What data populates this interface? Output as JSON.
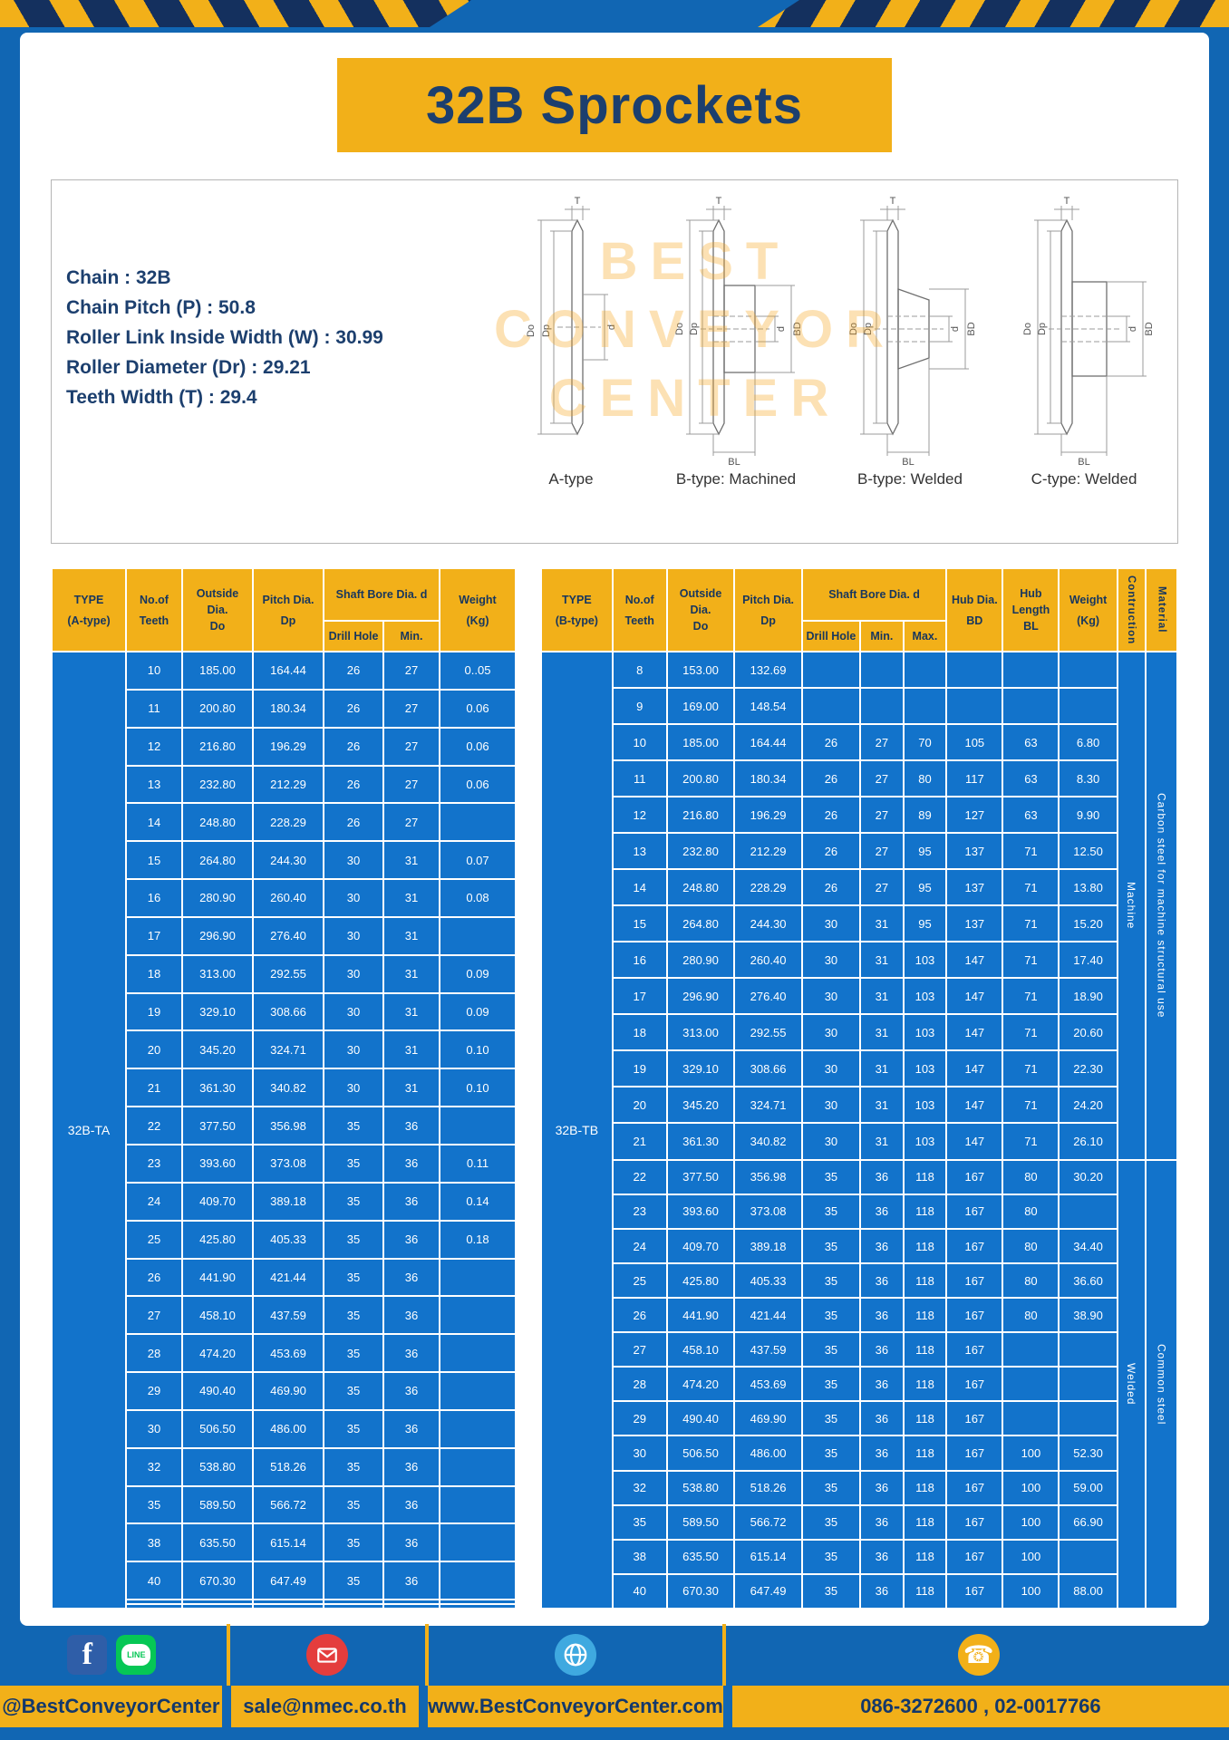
{
  "title": "32B Sprockets",
  "specs": [
    "Chain : 32B",
    "Chain Pitch (P) : 50.8",
    "Roller Link Inside Width (W) : 30.99",
    "Roller Diameter (Dr) : 29.21",
    "Teeth Width (T) : 29.4"
  ],
  "diagram": {
    "watermark": [
      "BEST",
      "CONVEYOR",
      "CENTER"
    ],
    "types": [
      "A-type",
      "B-type: Machined",
      "B-type: Welded",
      "C-type: Welded"
    ],
    "dims": {
      "t": "T",
      "do": "Do",
      "dp": "Dp",
      "d": "d",
      "bd": "BD",
      "bl": "BL"
    }
  },
  "table_a": {
    "headers": {
      "type": [
        "TYPE",
        "(A-type)"
      ],
      "teeth": [
        "No.of",
        "Teeth"
      ],
      "outside": [
        "Outside",
        "Dia.",
        "Do"
      ],
      "pitch": [
        "Pitch Dia.",
        "Dp"
      ],
      "bore_group": "Shaft Bore Dia. d",
      "drill": "Drill Hole",
      "min": "Min.",
      "weight": [
        "Weight",
        "(Kg)"
      ]
    },
    "type_value": "32B-TA",
    "rows": [
      [
        "10",
        "185.00",
        "164.44",
        "26",
        "27",
        "0..05"
      ],
      [
        "11",
        "200.80",
        "180.34",
        "26",
        "27",
        "0.06"
      ],
      [
        "12",
        "216.80",
        "196.29",
        "26",
        "27",
        "0.06"
      ],
      [
        "13",
        "232.80",
        "212.29",
        "26",
        "27",
        "0.06"
      ],
      [
        "14",
        "248.80",
        "228.29",
        "26",
        "27",
        ""
      ],
      [
        "15",
        "264.80",
        "244.30",
        "30",
        "31",
        "0.07"
      ],
      [
        "16",
        "280.90",
        "260.40",
        "30",
        "31",
        "0.08"
      ],
      [
        "17",
        "296.90",
        "276.40",
        "30",
        "31",
        ""
      ],
      [
        "18",
        "313.00",
        "292.55",
        "30",
        "31",
        "0.09"
      ],
      [
        "19",
        "329.10",
        "308.66",
        "30",
        "31",
        "0.09"
      ],
      [
        "20",
        "345.20",
        "324.71",
        "30",
        "31",
        "0.10"
      ],
      [
        "21",
        "361.30",
        "340.82",
        "30",
        "31",
        "0.10"
      ],
      [
        "22",
        "377.50",
        "356.98",
        "35",
        "36",
        ""
      ],
      [
        "23",
        "393.60",
        "373.08",
        "35",
        "36",
        "0.11"
      ],
      [
        "24",
        "409.70",
        "389.18",
        "35",
        "36",
        "0.14"
      ],
      [
        "25",
        "425.80",
        "405.33",
        "35",
        "36",
        "0.18"
      ],
      [
        "26",
        "441.90",
        "421.44",
        "35",
        "36",
        ""
      ],
      [
        "27",
        "458.10",
        "437.59",
        "35",
        "36",
        ""
      ],
      [
        "28",
        "474.20",
        "453.69",
        "35",
        "36",
        ""
      ],
      [
        "29",
        "490.40",
        "469.90",
        "35",
        "36",
        ""
      ],
      [
        "30",
        "506.50",
        "486.00",
        "35",
        "36",
        ""
      ],
      [
        "32",
        "538.80",
        "518.26",
        "35",
        "36",
        ""
      ],
      [
        "35",
        "589.50",
        "566.72",
        "35",
        "36",
        ""
      ],
      [
        "38",
        "635.50",
        "615.14",
        "35",
        "36",
        ""
      ],
      [
        "40",
        "670.30",
        "647.49",
        "35",
        "36",
        ""
      ],
      [
        "",
        "",
        "",
        "",
        "",
        ""
      ],
      [
        "",
        "",
        "",
        "",
        "",
        ""
      ]
    ]
  },
  "table_b": {
    "headers": {
      "type": [
        "TYPE",
        "(B-type)"
      ],
      "teeth": [
        "No.of",
        "Teeth"
      ],
      "outside": [
        "Outside",
        "Dia.",
        "Do"
      ],
      "pitch": [
        "Pitch Dia.",
        "Dp"
      ],
      "bore_group": "Shaft Bore Dia. d",
      "drill": "Drill Hole",
      "min": "Min.",
      "max": "Max.",
      "hub_dia": [
        "Hub Dia.",
        "BD"
      ],
      "hub_len": [
        "Hub",
        "Length",
        "BL"
      ],
      "weight": [
        "Weight",
        "(Kg)"
      ],
      "construction": "Contruction",
      "material": "Material"
    },
    "type_value": "32B-TB",
    "rows": [
      [
        "8",
        "153.00",
        "132.69",
        "",
        "",
        "",
        "",
        "",
        ""
      ],
      [
        "9",
        "169.00",
        "148.54",
        "",
        "",
        "",
        "",
        "",
        ""
      ],
      [
        "10",
        "185.00",
        "164.44",
        "26",
        "27",
        "70",
        "105",
        "63",
        "6.80"
      ],
      [
        "11",
        "200.80",
        "180.34",
        "26",
        "27",
        "80",
        "117",
        "63",
        "8.30"
      ],
      [
        "12",
        "216.80",
        "196.29",
        "26",
        "27",
        "89",
        "127",
        "63",
        "9.90"
      ],
      [
        "13",
        "232.80",
        "212.29",
        "26",
        "27",
        "95",
        "137",
        "71",
        "12.50"
      ],
      [
        "14",
        "248.80",
        "228.29",
        "26",
        "27",
        "95",
        "137",
        "71",
        "13.80"
      ],
      [
        "15",
        "264.80",
        "244.30",
        "30",
        "31",
        "95",
        "137",
        "71",
        "15.20"
      ],
      [
        "16",
        "280.90",
        "260.40",
        "30",
        "31",
        "103",
        "147",
        "71",
        "17.40"
      ],
      [
        "17",
        "296.90",
        "276.40",
        "30",
        "31",
        "103",
        "147",
        "71",
        "18.90"
      ],
      [
        "18",
        "313.00",
        "292.55",
        "30",
        "31",
        "103",
        "147",
        "71",
        "20.60"
      ],
      [
        "19",
        "329.10",
        "308.66",
        "30",
        "31",
        "103",
        "147",
        "71",
        "22.30"
      ],
      [
        "20",
        "345.20",
        "324.71",
        "30",
        "31",
        "103",
        "147",
        "71",
        "24.20"
      ],
      [
        "21",
        "361.30",
        "340.82",
        "30",
        "31",
        "103",
        "147",
        "71",
        "26.10"
      ],
      [
        "22",
        "377.50",
        "356.98",
        "35",
        "36",
        "118",
        "167",
        "80",
        "30.20"
      ],
      [
        "23",
        "393.60",
        "373.08",
        "35",
        "36",
        "118",
        "167",
        "80",
        ""
      ],
      [
        "24",
        "409.70",
        "389.18",
        "35",
        "36",
        "118",
        "167",
        "80",
        "34.40"
      ],
      [
        "25",
        "425.80",
        "405.33",
        "35",
        "36",
        "118",
        "167",
        "80",
        "36.60"
      ],
      [
        "26",
        "441.90",
        "421.44",
        "35",
        "36",
        "118",
        "167",
        "80",
        "38.90"
      ],
      [
        "27",
        "458.10",
        "437.59",
        "35",
        "36",
        "118",
        "167",
        "",
        ""
      ],
      [
        "28",
        "474.20",
        "453.69",
        "35",
        "36",
        "118",
        "167",
        "",
        ""
      ],
      [
        "29",
        "490.40",
        "469.90",
        "35",
        "36",
        "118",
        "167",
        "",
        ""
      ],
      [
        "30",
        "506.50",
        "486.00",
        "35",
        "36",
        "118",
        "167",
        "100",
        "52.30"
      ],
      [
        "32",
        "538.80",
        "518.26",
        "35",
        "36",
        "118",
        "167",
        "100",
        "59.00"
      ],
      [
        "35",
        "589.50",
        "566.72",
        "35",
        "36",
        "118",
        "167",
        "100",
        "66.90"
      ],
      [
        "38",
        "635.50",
        "615.14",
        "35",
        "36",
        "118",
        "167",
        "100",
        ""
      ],
      [
        "40",
        "670.30",
        "647.49",
        "35",
        "36",
        "118",
        "167",
        "100",
        "88.00"
      ]
    ],
    "tail_groups": [
      {
        "name": "construction-cell",
        "cls": "vtext",
        "segments": [
          {
            "label": "Machine",
            "span": 14
          },
          {
            "label": "Welded",
            "span": 13
          }
        ]
      },
      {
        "name": "material-cell",
        "cls": "vtext",
        "segments": [
          {
            "label": "Carbon steel for machine structural use",
            "span": 14
          },
          {
            "label": "Common steel",
            "span": 13
          }
        ]
      }
    ]
  },
  "footer": {
    "fb_label": "f",
    "line_label": "LINE",
    "sections": [
      {
        "text": "@BestConveyorCenter"
      },
      {
        "text": "sale@nmec.co.th"
      },
      {
        "text": "www.BestConveyorCenter.com"
      },
      {
        "text": "086-3272600 , 02-0017766"
      }
    ]
  },
  "colors": {
    "accent_yellow": "#F2B019",
    "background_blue": "#1166B3",
    "cell_blue": "#1273CB",
    "navy_text": "#1C3F6E"
  }
}
